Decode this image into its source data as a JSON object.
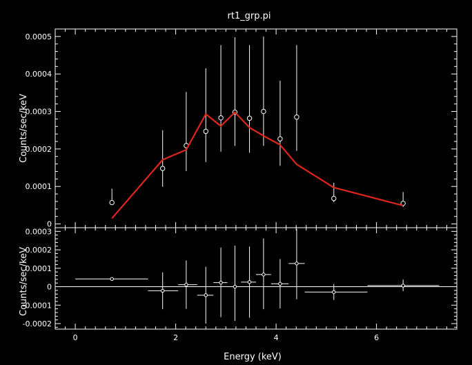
{
  "chart_data": [
    {
      "type": "scatter",
      "title": "rt1_grp.pi",
      "xlabel": "",
      "ylabel": "Counts/sec/keV",
      "xlim": [
        -0.4,
        7.6
      ],
      "ylim": [
        -1e-05,
        0.00052
      ],
      "x_ticks": [
        0,
        2,
        4,
        6
      ],
      "y_ticks": [
        0,
        0.0001,
        0.0002,
        0.0003,
        0.0004,
        0.0005
      ],
      "y_tick_labels": [
        "0",
        "0.0001",
        "0.0002",
        "0.0003",
        "0.0004",
        "0.0005"
      ],
      "grid": false,
      "legend": "none",
      "series": [
        {
          "kind": "data",
          "color": "#ffffff",
          "x": [
            0.73,
            1.74,
            2.21,
            2.6,
            2.9,
            3.18,
            3.47,
            3.75,
            4.08,
            4.41,
            5.15,
            6.53
          ],
          "y": [
            5.7e-05,
            0.000148,
            0.000209,
            0.000247,
            0.000283,
            0.000298,
            0.000282,
            0.0003,
            0.000227,
            0.000285,
            6.8e-05,
            5.5e-05
          ],
          "yerr_low": [
            5.7e-05,
            9.9e-05,
            0.000141,
            0.000165,
            0.000193,
            0.000208,
            0.00019,
            0.000208,
            0.000155,
            0.000195,
            5.8e-05,
            4.5e-05
          ],
          "yerr_high": [
            9.4e-05,
            0.00025,
            0.000352,
            0.000415,
            0.000477,
            0.000498,
            0.000477,
            0.0005,
            0.000382,
            0.000477,
            0.00011,
            8.5e-05
          ],
          "xerr_low": [
            0.73,
            1.74,
            2.21,
            2.6,
            2.9,
            3.18,
            3.47,
            3.75,
            4.08,
            4.41,
            5.15,
            6.53
          ],
          "xerr_high": [
            0.73,
            1.74,
            2.21,
            2.6,
            2.9,
            3.18,
            3.47,
            3.75,
            4.08,
            4.41,
            5.15,
            6.53
          ]
        },
        {
          "kind": "model",
          "color": "#e1261c",
          "x": [
            0.73,
            1.74,
            2.21,
            2.6,
            2.9,
            3.18,
            3.47,
            3.75,
            4.08,
            4.41,
            5.15,
            6.53
          ],
          "y": [
            1.5e-05,
            0.000171,
            0.000198,
            0.000293,
            0.000261,
            0.000298,
            0.000257,
            0.000235,
            0.000211,
            0.000159,
            9.7e-05,
            4.9e-05
          ]
        }
      ]
    },
    {
      "type": "scatter",
      "title": "",
      "xlabel": "Energy (keV)",
      "ylabel": "Counts/sec/keV",
      "xlim": [
        -0.4,
        7.6
      ],
      "ylim": [
        -0.00023,
        0.00032
      ],
      "x_ticks": [
        0,
        2,
        4,
        6
      ],
      "x_tick_labels": [
        "0",
        "2",
        "4",
        "6"
      ],
      "y_ticks": [
        -0.0002,
        -0.0001,
        0,
        0.0001,
        0.0002,
        0.0003
      ],
      "y_tick_labels": [
        "-0.0002",
        "-0.0001",
        "0",
        "0.0001",
        "0.0002",
        "0.0003"
      ],
      "grid": false,
      "legend": "none",
      "zero_line": true,
      "series": [
        {
          "kind": "residuals",
          "color": "#ffffff",
          "x": [
            0.73,
            1.74,
            2.21,
            2.6,
            2.9,
            3.18,
            3.47,
            3.75,
            4.08,
            4.41,
            5.15,
            6.53
          ],
          "y": [
            4.2e-05,
            -2.2e-05,
            1.1e-05,
            -4.6e-05,
            2.2e-05,
            0.0,
            2.5e-05,
            6.6e-05,
            1.6e-05,
            0.000126,
            -2.9e-05,
            6e-06
          ],
          "yerr_low": [
            4.2e-05,
            -0.000122,
            -0.00012,
            -0.0002,
            -0.000165,
            -0.000185,
            -0.000168,
            -0.000122,
            -0.000118,
            -6.8e-05,
            -7.2e-05,
            -2.4e-05
          ],
          "yerr_high": [
            4.2e-05,
            7.8e-05,
            0.000142,
            0.000108,
            0.000212,
            0.000222,
            0.000218,
            0.000262,
            0.00015,
            0.000314,
            1.5e-05,
            3.9e-05
          ],
          "xerr_low": [
            0,
            1.45,
            2.05,
            2.43,
            2.75,
            3.03,
            3.3,
            3.6,
            3.9,
            4.25,
            4.57,
            5.82
          ],
          "xerr_high": [
            1.45,
            2.05,
            2.43,
            2.75,
            3.03,
            3.3,
            3.6,
            3.9,
            4.25,
            4.57,
            5.82,
            7.25
          ]
        }
      ]
    }
  ]
}
